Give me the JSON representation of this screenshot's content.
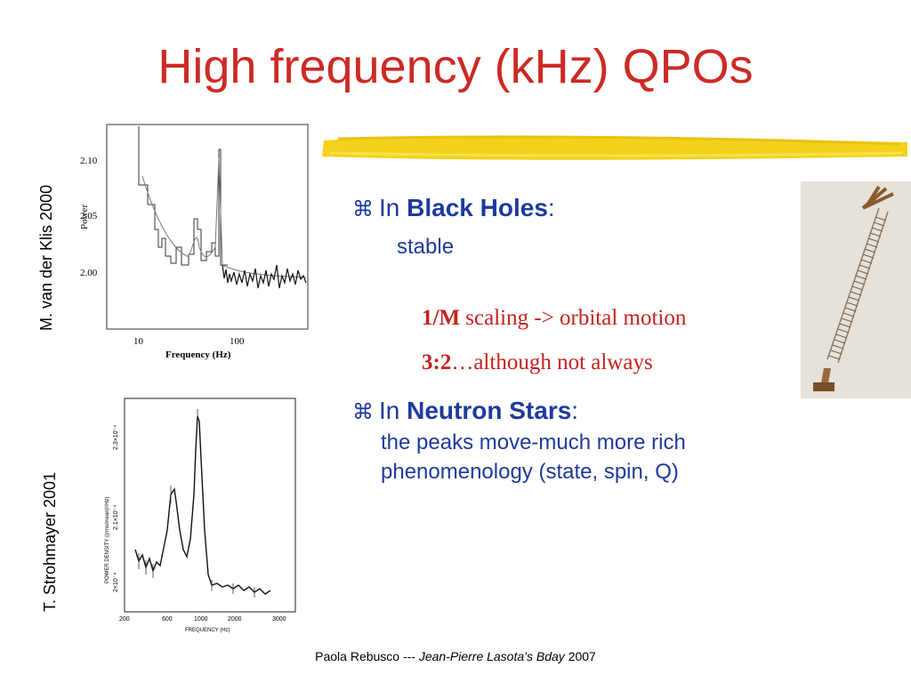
{
  "slide": {
    "title": "High frequency (kHz) QPOs"
  },
  "side_labels": {
    "top": "M. van der Klis 2000",
    "bottom": "T. Strohmayer 2001"
  },
  "figure_top": {
    "y_axis_label": "Power",
    "x_axis_label": "Frequency (Hz)",
    "y_ticks": [
      "2.10",
      "2.05",
      "2.00"
    ],
    "x_ticks": [
      "10",
      "100"
    ]
  },
  "figure_bottom": {
    "y_axis_label": "POWER DENSITY ((rms/mean)²/Hz)",
    "x_axis_label": "FREQUENCY (Hz)",
    "y_ticks": [
      "2.3×10⁻⁴",
      "2.1×10⁻⁴",
      "2×10⁻⁴"
    ],
    "x_ticks": [
      "200",
      "600",
      "1000",
      "2000",
      "3000"
    ]
  },
  "bullets": {
    "black_holes": {
      "prefix": "In ",
      "strong": "Black Holes",
      "suffix": ":",
      "stable": "stable",
      "line1_bold": "1/M",
      "line1_rest": " scaling -> orbital motion",
      "line2_bold": "3:2",
      "line2_rest": "…although not always"
    },
    "neutron_stars": {
      "prefix": "In ",
      "strong": "Neutron Stars",
      "suffix": ":",
      "desc": " the peaks move-much more rich phenomenology (state, spin, Q)"
    },
    "marker": "⌘"
  },
  "footer": {
    "author": "Paola Rebusco --- ",
    "event": "Jean-Pierre Lasota’s Bday",
    "year": "  2007"
  },
  "colors": {
    "title": "#cc2a25",
    "bullet_text": "#1f3a9c",
    "serif_red": "#c5221f",
    "highlight": "#f2d21a"
  }
}
